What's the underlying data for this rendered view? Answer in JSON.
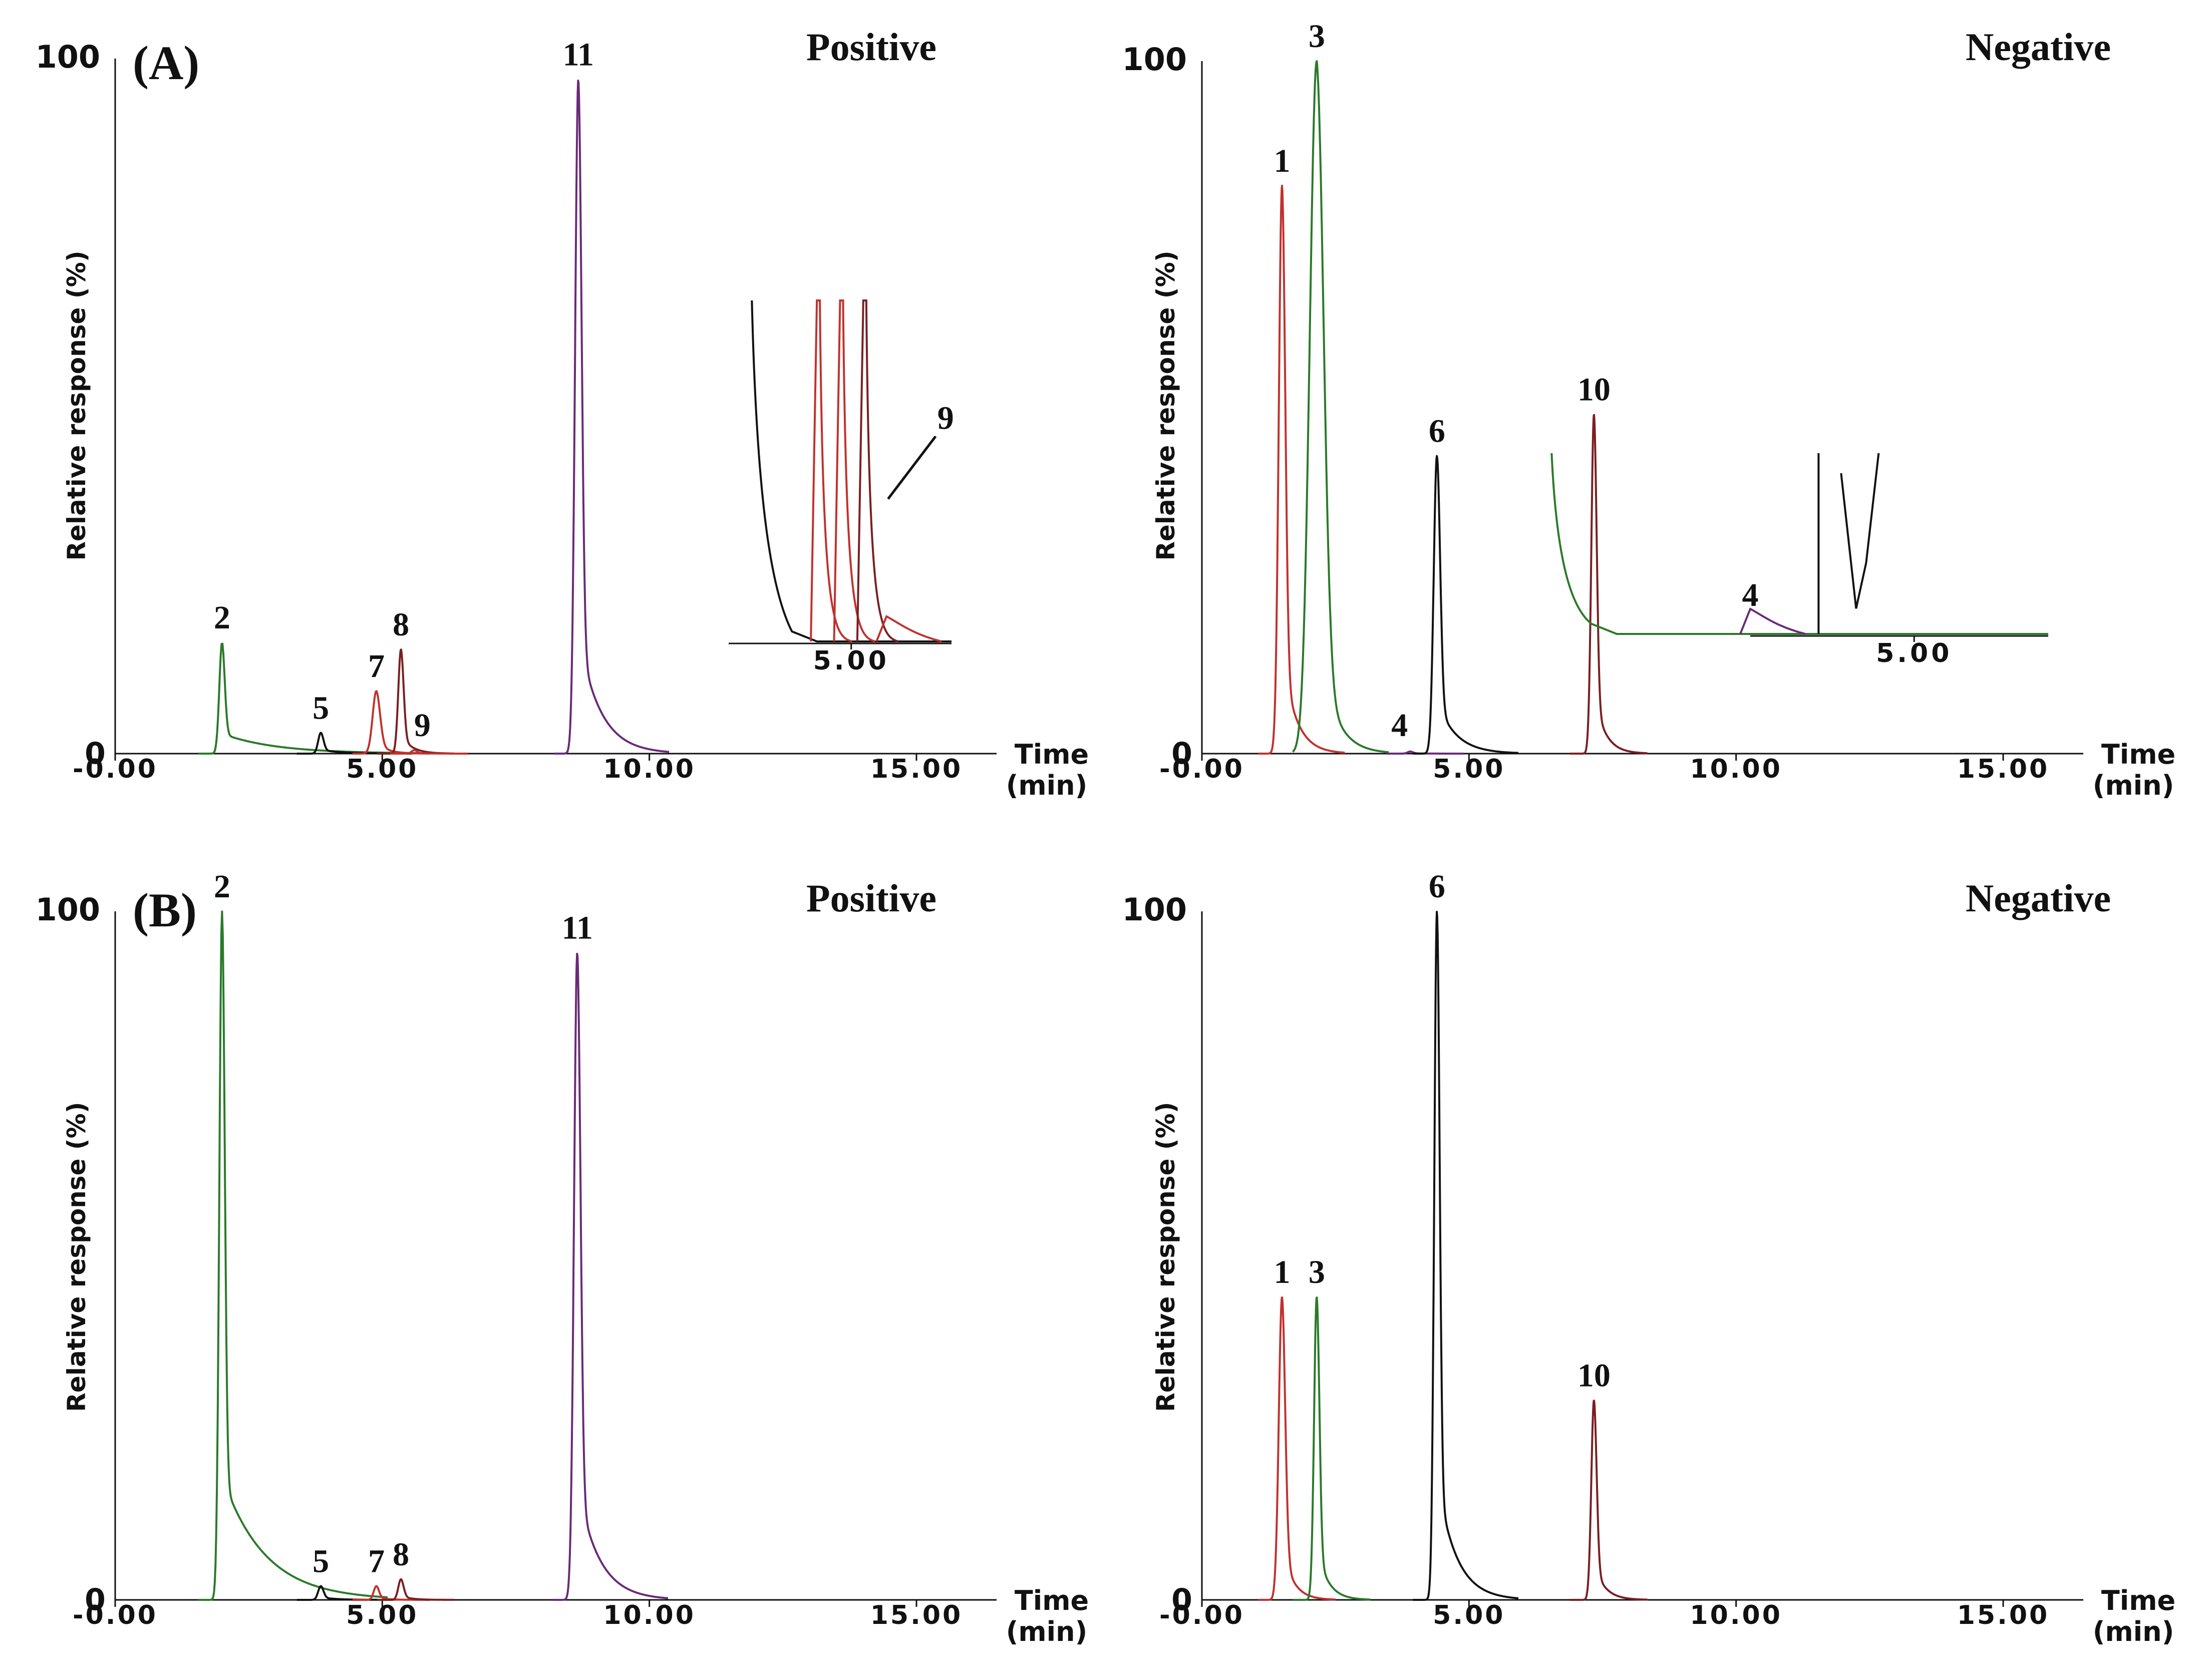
{
  "figure": {
    "x_axis_label_top": "Time",
    "x_axis_label_bottom": "(min)",
    "y_axis_label": "Relative response (%)",
    "y_top_tick": "100",
    "y_zero_tick": "0",
    "x_tick_labels": [
      "-0.00",
      "5.00",
      "10.00",
      "15.00"
    ]
  },
  "colors": {
    "red": "#c0322e",
    "green": "#2a7a2a",
    "black": "#111111",
    "purple": "#6a2a78",
    "maroon": "#7a1f22",
    "axis": "#111111"
  },
  "chart_data": [
    {
      "id": "A-positive",
      "type": "line",
      "panel_label": "(A)",
      "mode_label": "Positive",
      "xlim": [
        0,
        16.5
      ],
      "ylim": [
        0,
        100
      ],
      "xlabel": "Time (min)",
      "ylabel": "Relative response (%)",
      "x_ticks": [
        0,
        5,
        10,
        15
      ],
      "series": [
        {
          "name": "2",
          "color": "green",
          "peaks": [
            {
              "rt": 2.0,
              "height": 16,
              "width": 0.05,
              "tail": 1.0
            }
          ]
        },
        {
          "name": "5",
          "color": "black",
          "peaks": [
            {
              "rt": 3.85,
              "height": 3,
              "width": 0.05,
              "tail": 0.4
            }
          ]
        },
        {
          "name": "7",
          "color": "red",
          "peaks": [
            {
              "rt": 4.89,
              "height": 9,
              "width": 0.07,
              "tail": 0.2
            }
          ]
        },
        {
          "name": "8",
          "color": "maroon",
          "peaks": [
            {
              "rt": 5.35,
              "height": 15,
              "width": 0.05,
              "tail": 0.2
            }
          ]
        },
        {
          "name": "9",
          "color": "red",
          "peaks": [
            {
              "rt": 5.6,
              "height": 0.5,
              "width": 0.05,
              "tail": 0.2
            }
          ]
        },
        {
          "name": "11",
          "color": "purple",
          "peaks": [
            {
              "rt": 8.67,
              "height": 97,
              "width": 0.06,
              "tail": 0.4
            }
          ]
        }
      ],
      "peak_labels": [
        {
          "text": "2",
          "rt": 2.0,
          "y": 16
        },
        {
          "text": "5",
          "rt": 3.85,
          "y": 3
        },
        {
          "text": "7",
          "rt": 4.89,
          "y": 9
        },
        {
          "text": "8",
          "rt": 5.35,
          "y": 15
        },
        {
          "text": "9",
          "rt": 5.75,
          "y": 0.5
        },
        {
          "text": "11",
          "rt": 8.67,
          "y": 97
        }
      ],
      "inset": {
        "tick_label": "5.00",
        "callout_label": "9",
        "traces": [
          {
            "color": "black",
            "kind": "decay",
            "rt": 4.15
          },
          {
            "color": "red",
            "kind": "spike",
            "rt": 4.85
          },
          {
            "color": "red",
            "kind": "spike",
            "rt": 5.1
          },
          {
            "color": "maroon",
            "kind": "spike",
            "rt": 5.35
          },
          {
            "color": "red",
            "kind": "bump",
            "rt": 5.6
          }
        ]
      }
    },
    {
      "id": "A-negative",
      "type": "line",
      "panel_label": "",
      "mode_label": "Negative",
      "xlim": [
        0,
        16.5
      ],
      "ylim": [
        0,
        100
      ],
      "xlabel": "Time (min)",
      "ylabel": "Relative response (%)",
      "x_ticks": [
        0,
        5,
        10,
        15
      ],
      "series": [
        {
          "name": "1",
          "color": "red",
          "peaks": [
            {
              "rt": 1.5,
              "height": 82,
              "width": 0.06,
              "tail": 0.25
            }
          ]
        },
        {
          "name": "3",
          "color": "green",
          "peaks": [
            {
              "rt": 2.15,
              "height": 100,
              "width": 0.13,
              "tail": 0.3
            }
          ]
        },
        {
          "name": "4",
          "color": "purple",
          "peaks": [
            {
              "rt": 3.9,
              "height": 0.3,
              "width": 0.05,
              "tail": 0.2
            }
          ]
        },
        {
          "name": "6",
          "color": "black",
          "peaks": [
            {
              "rt": 4.4,
              "height": 43,
              "width": 0.06,
              "tail": 0.35
            }
          ]
        },
        {
          "name": "10",
          "color": "maroon",
          "peaks": [
            {
              "rt": 7.34,
              "height": 49,
              "width": 0.05,
              "tail": 0.2
            }
          ]
        }
      ],
      "peak_labels": [
        {
          "text": "1",
          "rt": 1.5,
          "y": 82
        },
        {
          "text": "3",
          "rt": 2.15,
          "y": 100
        },
        {
          "text": "4",
          "rt": 3.7,
          "y": 0.5
        },
        {
          "text": "6",
          "rt": 4.4,
          "y": 43
        },
        {
          "text": "10",
          "rt": 7.34,
          "y": 49
        }
      ],
      "inset": {
        "tick_label": "5.00",
        "callout_label": "4",
        "traces": [
          {
            "color": "green",
            "kind": "decay",
            "rt": 2.3
          },
          {
            "color": "purple",
            "kind": "bump",
            "rt": 3.9
          },
          {
            "color": "black",
            "kind": "valley",
            "rt": 4.45
          }
        ]
      }
    },
    {
      "id": "B-positive",
      "type": "line",
      "panel_label": "(B)",
      "mode_label": "Positive",
      "xlim": [
        0,
        16.5
      ],
      "ylim": [
        0,
        100
      ],
      "xlabel": "Time (min)",
      "ylabel": "Relative response (%)",
      "x_ticks": [
        0,
        5,
        10,
        15
      ],
      "series": [
        {
          "name": "2",
          "color": "green",
          "peaks": [
            {
              "rt": 2.0,
              "height": 100,
              "width": 0.05,
              "tail": 0.8
            }
          ]
        },
        {
          "name": "5",
          "color": "black",
          "peaks": [
            {
              "rt": 3.85,
              "height": 2,
              "width": 0.05,
              "tail": 0.3
            }
          ]
        },
        {
          "name": "7",
          "color": "red",
          "peaks": [
            {
              "rt": 4.89,
              "height": 2,
              "width": 0.05,
              "tail": 0.2
            }
          ]
        },
        {
          "name": "8",
          "color": "maroon",
          "peaks": [
            {
              "rt": 5.35,
              "height": 3,
              "width": 0.05,
              "tail": 0.2
            }
          ]
        },
        {
          "name": "11",
          "color": "purple",
          "peaks": [
            {
              "rt": 8.65,
              "height": 94,
              "width": 0.06,
              "tail": 0.4
            }
          ]
        }
      ],
      "peak_labels": [
        {
          "text": "2",
          "rt": 2.0,
          "y": 100
        },
        {
          "text": "5",
          "rt": 3.85,
          "y": 2
        },
        {
          "text": "7",
          "rt": 4.89,
          "y": 2
        },
        {
          "text": "8",
          "rt": 5.35,
          "y": 3
        },
        {
          "text": "11",
          "rt": 8.65,
          "y": 94
        }
      ]
    },
    {
      "id": "B-negative",
      "type": "line",
      "panel_label": "",
      "mode_label": "Negative",
      "xlim": [
        0,
        16.5
      ],
      "ylim": [
        0,
        100
      ],
      "xlabel": "Time (min)",
      "ylabel": "Relative response (%)",
      "x_ticks": [
        0,
        5,
        10,
        15
      ],
      "series": [
        {
          "name": "1",
          "color": "red",
          "peaks": [
            {
              "rt": 1.5,
              "height": 44,
              "width": 0.06,
              "tail": 0.2
            }
          ]
        },
        {
          "name": "3",
          "color": "green",
          "peaks": [
            {
              "rt": 2.15,
              "height": 44,
              "width": 0.05,
              "tail": 0.2
            }
          ]
        },
        {
          "name": "6",
          "color": "black",
          "peaks": [
            {
              "rt": 4.4,
              "height": 100,
              "width": 0.05,
              "tail": 0.35
            }
          ]
        },
        {
          "name": "10",
          "color": "maroon",
          "peaks": [
            {
              "rt": 7.34,
              "height": 29,
              "width": 0.05,
              "tail": 0.2
            }
          ]
        }
      ],
      "peak_labels": [
        {
          "text": "1",
          "rt": 1.5,
          "y": 44
        },
        {
          "text": "3",
          "rt": 2.15,
          "y": 44
        },
        {
          "text": "6",
          "rt": 4.4,
          "y": 100
        },
        {
          "text": "10",
          "rt": 7.34,
          "y": 29
        }
      ]
    }
  ]
}
